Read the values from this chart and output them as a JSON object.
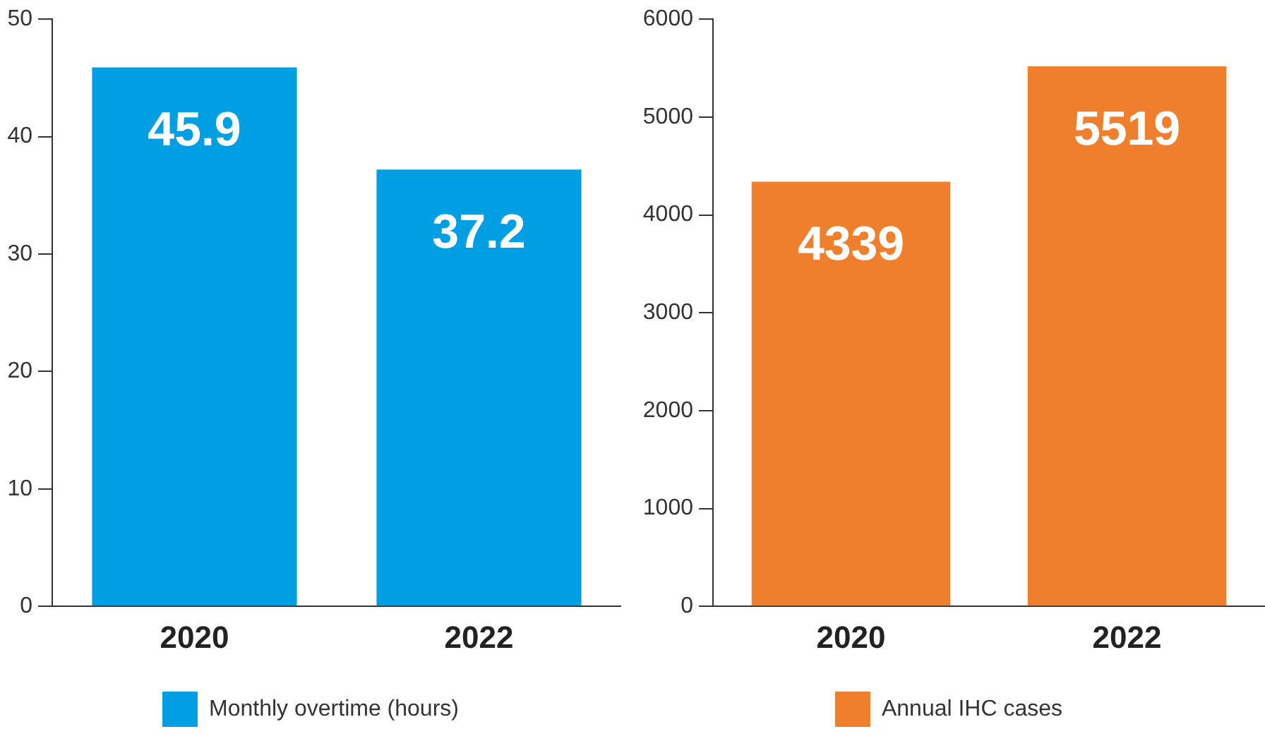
{
  "chart_data": [
    {
      "type": "bar",
      "categories": [
        "2020",
        "2022"
      ],
      "series": [
        {
          "name": "Monthly overtime (hours)",
          "color": "#009fe3",
          "values": [
            45.9,
            37.2
          ]
        }
      ],
      "ylim": [
        0,
        50
      ],
      "yticks": [
        0,
        10,
        20,
        30,
        40,
        50
      ],
      "data_labels": true,
      "legend": "bottom"
    },
    {
      "type": "bar",
      "categories": [
        "2020",
        "2022"
      ],
      "series": [
        {
          "name": "Annual IHC cases",
          "color": "#f07f2d",
          "values": [
            4339,
            5519
          ]
        }
      ],
      "ylim": [
        0,
        6000
      ],
      "yticks": [
        0,
        1000,
        2000,
        3000,
        4000,
        5000,
        6000
      ],
      "data_labels": true,
      "legend": "bottom"
    }
  ]
}
